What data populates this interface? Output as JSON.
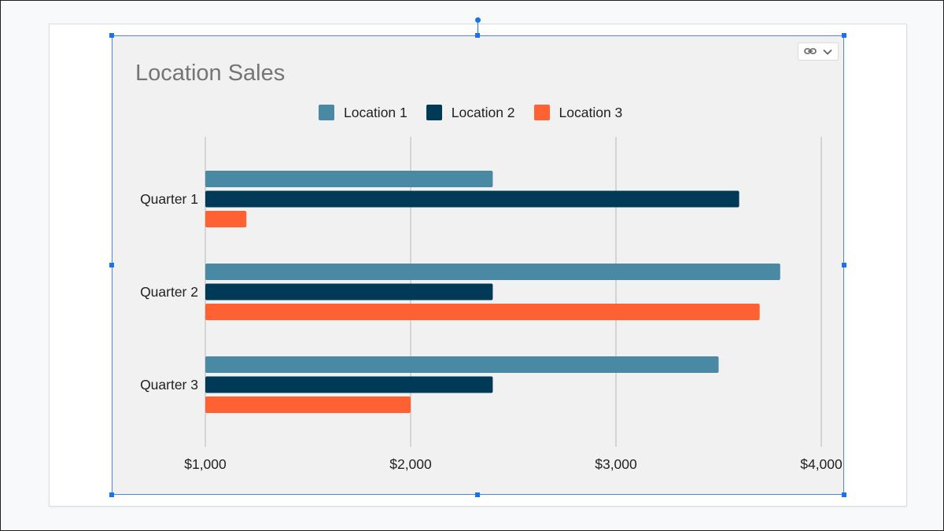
{
  "chart_data": {
    "type": "bar",
    "orientation": "horizontal",
    "title": "Location Sales",
    "xlabel": "",
    "ylabel": "",
    "categories": [
      "Quarter 1",
      "Quarter 2",
      "Quarter 3"
    ],
    "series": [
      {
        "name": "Location 1",
        "color": "#4a89a4",
        "values": [
          2400,
          3800,
          3500
        ]
      },
      {
        "name": "Location 2",
        "color": "#003a57",
        "values": [
          3600,
          2400,
          2400
        ]
      },
      {
        "name": "Location 3",
        "color": "#ff6133",
        "values": [
          1200,
          3700,
          2000
        ]
      }
    ],
    "xlim": [
      1000,
      4000
    ],
    "x_ticks": [
      1000,
      2000,
      3000,
      4000
    ],
    "x_tick_labels": [
      "$1,000",
      "$2,000",
      "$3,000",
      "$4,000"
    ],
    "grid": true,
    "legend_position": "top"
  },
  "link_chip": {
    "icons": [
      "link-icon",
      "chevron-down-icon"
    ]
  },
  "colors": {
    "selection": "#1a73e8",
    "chart_background": "#f1f1f1",
    "gridline": "#c4c4c4",
    "title": "#757575"
  }
}
